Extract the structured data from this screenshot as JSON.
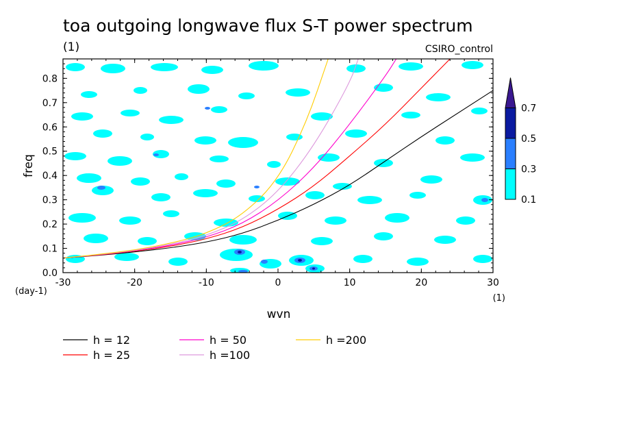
{
  "chart_data": {
    "type": "contour",
    "title": "toa outgoing longwave flux S-T power spectrum",
    "subtitle_left": "(1)",
    "subtitle_right": "CSIRO_control",
    "xlabel": "wvn",
    "ylabel": "freq",
    "x_unit": "(1)",
    "y_unit": "(day-1)",
    "xlim": [
      -30,
      30
    ],
    "ylim": [
      0,
      0.88
    ],
    "x_ticks": [
      -30,
      -20,
      -10,
      0,
      10,
      20,
      30
    ],
    "x_tick_labels": [
      "-30",
      "-20",
      "-10",
      "0",
      "10",
      "20",
      "30"
    ],
    "y_ticks": [
      0,
      0.1,
      0.2,
      0.3,
      0.4,
      0.5,
      0.6,
      0.7,
      0.8
    ],
    "y_tick_labels": [
      "0.0",
      "0.1",
      "0.2",
      "0.3",
      "0.4",
      "0.5",
      "0.6",
      "0.7",
      "0.8"
    ],
    "colorbar": {
      "levels": [
        0.1,
        0.3,
        0.5,
        0.7
      ],
      "labels": [
        "0.1",
        "0.3",
        "0.5",
        "0.7"
      ],
      "colors": [
        "#00ffff",
        "#2a7fff",
        "#0a1aa0",
        "#3a1890"
      ]
    },
    "series": [
      {
        "name": "h = 12",
        "color": "#000000",
        "x": [
          -30,
          -25,
          -20,
          -15,
          -10,
          -5,
          0,
          5,
          10,
          15,
          20,
          25,
          30
        ],
        "y": [
          0.06,
          0.071,
          0.085,
          0.102,
          0.125,
          0.16,
          0.215,
          0.28,
          0.36,
          0.46,
          0.56,
          0.655,
          0.75
        ]
      },
      {
        "name": "h = 25",
        "color": "#ff0000",
        "x": [
          -30,
          -25,
          -20,
          -15,
          -10,
          -5,
          0,
          5,
          10,
          15,
          20,
          24
        ],
        "y": [
          0.06,
          0.072,
          0.088,
          0.108,
          0.138,
          0.185,
          0.26,
          0.355,
          0.48,
          0.61,
          0.76,
          0.88
        ]
      },
      {
        "name": "h = 50",
        "color": "#ff00cc",
        "x": [
          -30,
          -25,
          -20,
          -15,
          -10,
          -5,
          0,
          5,
          10,
          15,
          16.5
        ],
        "y": [
          0.06,
          0.073,
          0.09,
          0.112,
          0.145,
          0.2,
          0.295,
          0.43,
          0.61,
          0.81,
          0.88
        ]
      },
      {
        "name": "h =100",
        "color": "#dd99dd",
        "x": [
          -30,
          -25,
          -20,
          -15,
          -10,
          -5,
          0,
          5,
          10,
          11.2
        ],
        "y": [
          0.06,
          0.074,
          0.091,
          0.116,
          0.152,
          0.215,
          0.33,
          0.52,
          0.78,
          0.88
        ]
      },
      {
        "name": "h =200",
        "color": "#ffcc00",
        "x": [
          -30,
          -25,
          -20,
          -15,
          -10,
          -5,
          0,
          4,
          7
        ],
        "y": [
          0.06,
          0.075,
          0.093,
          0.12,
          0.16,
          0.235,
          0.38,
          0.62,
          0.88
        ]
      }
    ],
    "legend_placement": "bottom-left"
  }
}
